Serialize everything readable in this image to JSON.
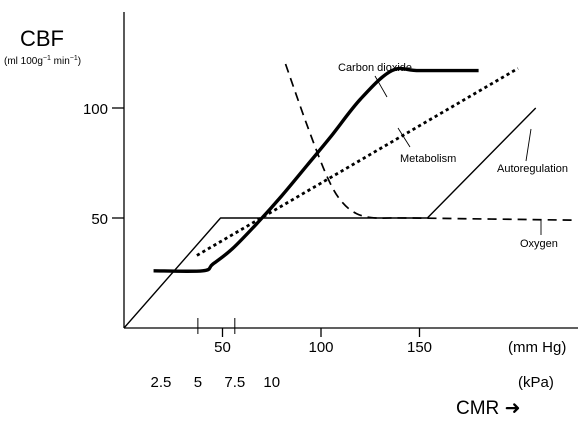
{
  "chart_data": {
    "type": "line",
    "title": "",
    "ylabel": "CBF",
    "yunit_parts": [
      "(ml 100g",
      "−1",
      " min",
      "−1",
      ")"
    ],
    "xlabel": "CMR",
    "xlabel_arrow": "➜",
    "xlim": [
      0,
      200
    ],
    "ylim": [
      0,
      145
    ],
    "yticks": [
      {
        "value": 50,
        "label": "50"
      },
      {
        "value": 100,
        "label": "100"
      }
    ],
    "xticks_mmhg": [
      {
        "value": 50,
        "label": "50"
      },
      {
        "value": 100,
        "label": "100"
      },
      {
        "value": 150,
        "label": "150"
      }
    ],
    "xticks_mmhg_unit": "(mm Hg)",
    "xticks_kpa": [
      {
        "value": 2.5,
        "label": "2.5"
      },
      {
        "value": 5,
        "label": "5"
      },
      {
        "value": 7.5,
        "label": "7.5"
      },
      {
        "value": 10,
        "label": "10"
      }
    ],
    "xticks_kpa_unit": "(kPa)",
    "kpa_to_mmhg": 7.5,
    "series": [
      {
        "name": "Carbon dioxide",
        "style": "thick",
        "points": [
          [
            15,
            26
          ],
          [
            40,
            26
          ],
          [
            45,
            29
          ],
          [
            55,
            36
          ],
          [
            68,
            48
          ],
          [
            80,
            60
          ],
          [
            93,
            74
          ],
          [
            105,
            87
          ],
          [
            120,
            104
          ],
          [
            136,
            117
          ],
          [
            150,
            117
          ],
          [
            180,
            117
          ]
        ]
      },
      {
        "name": "Metabolism",
        "style": "dotted",
        "points": [
          [
            37,
            33
          ],
          [
            200,
            118
          ]
        ]
      },
      {
        "name": "Autoregulation",
        "style": "thin",
        "points": [
          [
            0,
            0
          ],
          [
            49,
            50
          ],
          [
            154,
            50
          ],
          [
            209,
            100
          ]
        ]
      },
      {
        "name": "Oxygen",
        "style": "dashed",
        "points": [
          [
            82,
            120
          ],
          [
            93,
            92
          ],
          [
            103,
            69
          ],
          [
            110,
            58
          ],
          [
            118,
            52
          ],
          [
            128,
            50
          ],
          [
            145,
            50
          ],
          [
            230,
            49
          ]
        ]
      }
    ],
    "labels": [
      {
        "text": "Carbon dioxide",
        "series": "Carbon dioxide"
      },
      {
        "text": "Metabolism",
        "series": "Metabolism"
      },
      {
        "text": "Autoregulation",
        "series": "Autoregulation"
      },
      {
        "text": "Oxygen",
        "series": "Oxygen"
      }
    ]
  }
}
